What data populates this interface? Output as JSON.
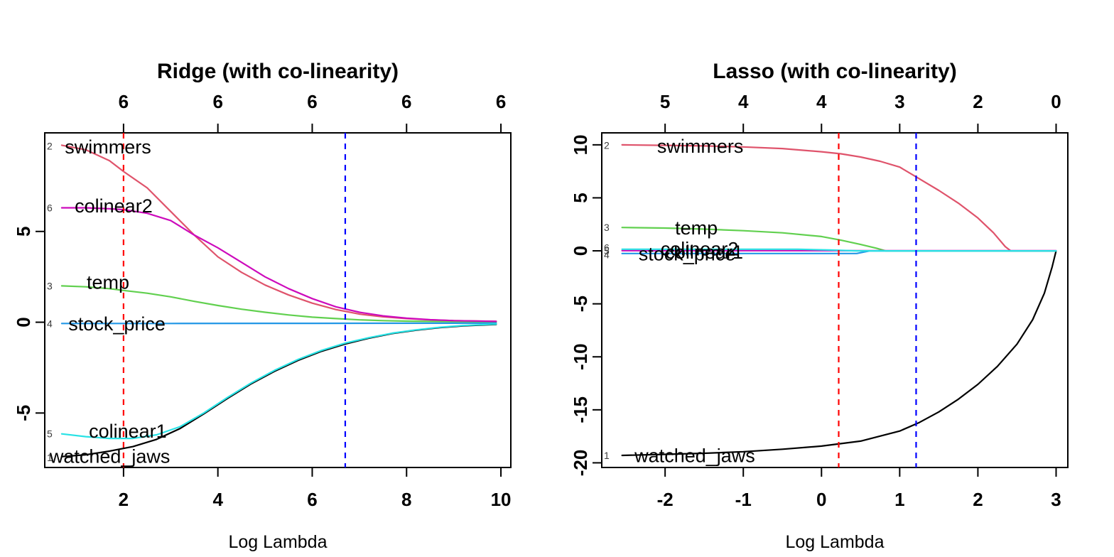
{
  "chart_data": [
    {
      "type": "line",
      "title": "Ridge (with co-linearity)",
      "xlabel": "Log Lambda",
      "ylabel": "",
      "grid": false,
      "legend": "none",
      "xlim": [
        0.33,
        10.21
      ],
      "ylim": [
        -8.0,
        10.43
      ],
      "x_ticks": [
        2,
        4,
        6,
        8,
        10
      ],
      "y_ticks": [
        5,
        0,
        -5
      ],
      "top_ticks": [
        {
          "x": 2,
          "label": "6"
        },
        {
          "x": 4,
          "label": "6"
        },
        {
          "x": 6,
          "label": "6"
        },
        {
          "x": 8,
          "label": "6"
        },
        {
          "x": 10,
          "label": "6"
        }
      ],
      "vlines": [
        {
          "name": "lambda-min-red-dashed",
          "x": 2.0,
          "color": "#FF0000"
        },
        {
          "name": "lambda-1se-blue-dashed",
          "x": 6.7,
          "color": "#0000FF"
        }
      ],
      "series": [
        {
          "name": "watched_jaws",
          "index": "1",
          "color": "#000000",
          "points": [
            [
              0.69,
              -7.4
            ],
            [
              1.2,
              -7.3
            ],
            [
              1.7,
              -7.1
            ],
            [
              2.2,
              -6.85
            ],
            [
              2.7,
              -6.45
            ],
            [
              3.2,
              -5.85
            ],
            [
              3.7,
              -5.05
            ],
            [
              4.2,
              -4.2
            ],
            [
              4.7,
              -3.4
            ],
            [
              5.2,
              -2.7
            ],
            [
              5.7,
              -2.1
            ],
            [
              6.2,
              -1.6
            ],
            [
              6.7,
              -1.2
            ],
            [
              7.2,
              -0.88
            ],
            [
              7.7,
              -0.62
            ],
            [
              8.2,
              -0.44
            ],
            [
              8.7,
              -0.3
            ],
            [
              9.2,
              -0.2
            ],
            [
              9.9,
              -0.12
            ]
          ]
        },
        {
          "name": "swimmers",
          "index": "2",
          "color": "#DF536B",
          "points": [
            [
              0.69,
              9.75
            ],
            [
              1.2,
              9.5
            ],
            [
              1.7,
              8.9
            ],
            [
              2.0,
              8.3
            ],
            [
              2.5,
              7.4
            ],
            [
              3.0,
              6.1
            ],
            [
              3.5,
              4.8
            ],
            [
              4.0,
              3.6
            ],
            [
              4.5,
              2.75
            ],
            [
              5.0,
              2.05
            ],
            [
              5.5,
              1.5
            ],
            [
              6.0,
              1.05
            ],
            [
              6.5,
              0.7
            ],
            [
              7.0,
              0.45
            ],
            [
              7.5,
              0.3
            ],
            [
              8.0,
              0.2
            ],
            [
              8.5,
              0.13
            ],
            [
              9.0,
              0.09
            ],
            [
              9.9,
              0.05
            ]
          ]
        },
        {
          "name": "temp",
          "index": "3",
          "color": "#61D04F",
          "points": [
            [
              0.69,
              2.0
            ],
            [
              1.2,
              1.95
            ],
            [
              1.7,
              1.85
            ],
            [
              2.0,
              1.75
            ],
            [
              2.5,
              1.6
            ],
            [
              3.0,
              1.4
            ],
            [
              3.5,
              1.15
            ],
            [
              4.0,
              0.92
            ],
            [
              4.5,
              0.72
            ],
            [
              5.0,
              0.55
            ],
            [
              5.5,
              0.4
            ],
            [
              6.0,
              0.28
            ],
            [
              6.5,
              0.2
            ],
            [
              7.0,
              0.13
            ],
            [
              7.5,
              0.09
            ],
            [
              8.0,
              0.06
            ],
            [
              9.0,
              0.03
            ],
            [
              9.9,
              0.02
            ]
          ]
        },
        {
          "name": "stock_price",
          "index": "4",
          "color": "#2297E6",
          "points": [
            [
              0.69,
              -0.07
            ],
            [
              3.0,
              -0.07
            ],
            [
              6.0,
              -0.06
            ],
            [
              9.9,
              -0.05
            ]
          ]
        },
        {
          "name": "colinear1",
          "index": "5",
          "color": "#28E2E5",
          "points": [
            [
              0.69,
              -6.15
            ],
            [
              1.2,
              -6.3
            ],
            [
              1.7,
              -6.4
            ],
            [
              2.2,
              -6.4
            ],
            [
              2.7,
              -6.2
            ],
            [
              3.2,
              -5.75
            ],
            [
              3.7,
              -5.0
            ],
            [
              4.2,
              -4.15
            ],
            [
              4.7,
              -3.35
            ],
            [
              5.2,
              -2.65
            ],
            [
              5.7,
              -2.05
            ],
            [
              6.2,
              -1.55
            ],
            [
              6.7,
              -1.15
            ],
            [
              7.2,
              -0.85
            ],
            [
              7.7,
              -0.6
            ],
            [
              8.2,
              -0.42
            ],
            [
              8.7,
              -0.28
            ],
            [
              9.2,
              -0.18
            ],
            [
              9.9,
              -0.1
            ]
          ]
        },
        {
          "name": "colinear2",
          "index": "6",
          "color": "#CD0BBC",
          "points": [
            [
              0.69,
              6.3
            ],
            [
              1.2,
              6.3
            ],
            [
              1.7,
              6.25
            ],
            [
              2.0,
              6.2
            ],
            [
              2.5,
              6.0
            ],
            [
              3.0,
              5.6
            ],
            [
              3.5,
              4.8
            ],
            [
              4.0,
              4.1
            ],
            [
              4.5,
              3.3
            ],
            [
              5.0,
              2.5
            ],
            [
              5.5,
              1.85
            ],
            [
              6.0,
              1.3
            ],
            [
              6.5,
              0.85
            ],
            [
              7.0,
              0.55
            ],
            [
              7.5,
              0.35
            ],
            [
              8.0,
              0.22
            ],
            [
              8.5,
              0.14
            ],
            [
              9.0,
              0.09
            ],
            [
              9.9,
              0.05
            ]
          ]
        }
      ],
      "labels": [
        {
          "text": "swimmers",
          "x": 1.67,
          "y": 9.65
        },
        {
          "text": "colinear2",
          "x": 1.79,
          "y": 6.4
        },
        {
          "text": "temp",
          "x": 1.67,
          "y": 2.2
        },
        {
          "text": "stock_price",
          "x": 1.86,
          "y": -0.1
        },
        {
          "text": "colinear1",
          "x": 2.09,
          "y": -6.0
        },
        {
          "text": "watched_jaws",
          "x": 1.71,
          "y": -7.4
        }
      ],
      "index_marks": [
        {
          "n": "2",
          "y": 9.7
        },
        {
          "n": "6",
          "y": 6.3
        },
        {
          "n": "3",
          "y": 2.0
        },
        {
          "n": "4",
          "y": -0.07
        },
        {
          "n": "5",
          "y": -6.15
        },
        {
          "n": "1",
          "y": -7.45
        }
      ]
    },
    {
      "type": "line",
      "title": "Lasso (with co-linearity)",
      "xlabel": "Log Lambda",
      "ylabel": "",
      "grid": false,
      "legend": "none",
      "xlim": [
        -2.81,
        3.15
      ],
      "ylim": [
        -20.44,
        11.13
      ],
      "x_ticks": [
        -2,
        -1,
        0,
        1,
        2,
        3
      ],
      "y_ticks": [
        10,
        5,
        0,
        -5,
        -10,
        -15,
        -20
      ],
      "top_ticks": [
        {
          "x": -2,
          "label": "5"
        },
        {
          "x": -1,
          "label": "4"
        },
        {
          "x": 0,
          "label": "4"
        },
        {
          "x": 1,
          "label": "3"
        },
        {
          "x": 2,
          "label": "2"
        },
        {
          "x": 3,
          "label": "0"
        }
      ],
      "vlines": [
        {
          "name": "lambda-min-red-dashed",
          "x": 0.22,
          "color": "#FF0000"
        },
        {
          "name": "lambda-1se-blue-dashed",
          "x": 1.21,
          "color": "#0000FF"
        }
      ],
      "series": [
        {
          "name": "watched_jaws",
          "index": "1",
          "color": "#000000",
          "points": [
            [
              -2.55,
              -19.3
            ],
            [
              -2.0,
              -19.2
            ],
            [
              -1.5,
              -19.1
            ],
            [
              -1.0,
              -18.95
            ],
            [
              -0.5,
              -18.72
            ],
            [
              0.0,
              -18.42
            ],
            [
              0.5,
              -17.95
            ],
            [
              1.0,
              -17.0
            ],
            [
              1.25,
              -16.2
            ],
            [
              1.5,
              -15.2
            ],
            [
              1.75,
              -14.0
            ],
            [
              2.0,
              -12.6
            ],
            [
              2.25,
              -10.9
            ],
            [
              2.5,
              -8.8
            ],
            [
              2.7,
              -6.5
            ],
            [
              2.85,
              -4.0
            ],
            [
              2.95,
              -1.5
            ],
            [
              3.0,
              0.0
            ]
          ]
        },
        {
          "name": "swimmers",
          "index": "2",
          "color": "#DF536B",
          "points": [
            [
              -2.55,
              10.0
            ],
            [
              -2.0,
              9.95
            ],
            [
              -1.5,
              9.9
            ],
            [
              -1.0,
              9.8
            ],
            [
              -0.5,
              9.65
            ],
            [
              0.0,
              9.35
            ],
            [
              0.25,
              9.15
            ],
            [
              0.5,
              8.85
            ],
            [
              0.75,
              8.45
            ],
            [
              1.0,
              7.9
            ],
            [
              1.25,
              6.8
            ],
            [
              1.5,
              5.7
            ],
            [
              1.75,
              4.5
            ],
            [
              2.0,
              3.1
            ],
            [
              2.2,
              1.7
            ],
            [
              2.35,
              0.4
            ],
            [
              2.42,
              0.0
            ],
            [
              3.0,
              0.0
            ]
          ]
        },
        {
          "name": "temp",
          "index": "3",
          "color": "#61D04F",
          "points": [
            [
              -2.55,
              2.2
            ],
            [
              -2.0,
              2.15
            ],
            [
              -1.5,
              2.05
            ],
            [
              -1.0,
              1.9
            ],
            [
              -0.5,
              1.7
            ],
            [
              0.0,
              1.35
            ],
            [
              0.25,
              1.0
            ],
            [
              0.5,
              0.6
            ],
            [
              0.7,
              0.25
            ],
            [
              0.82,
              0.0
            ],
            [
              3.0,
              0.0
            ]
          ]
        },
        {
          "name": "colinear2",
          "index": "6",
          "color": "#CD0BBC",
          "points": [
            [
              -2.55,
              0.02
            ],
            [
              3.0,
              0.02
            ]
          ]
        },
        {
          "name": "stock_price",
          "index": "4",
          "color": "#2297E6",
          "points": [
            [
              -2.55,
              -0.25
            ],
            [
              0.45,
              -0.25
            ],
            [
              0.62,
              0.0
            ],
            [
              3.0,
              0.0
            ]
          ]
        },
        {
          "name": "colinear1",
          "index": "5",
          "color": "#28E2E5",
          "points": [
            [
              -2.55,
              0.15
            ],
            [
              -0.3,
              0.15
            ],
            [
              0.1,
              0.08
            ],
            [
              0.45,
              0.0
            ],
            [
              3.0,
              0.0
            ]
          ]
        }
      ],
      "labels": [
        {
          "text": "swimmers",
          "x": -1.55,
          "y": 9.85
        },
        {
          "text": "temp",
          "x": -1.6,
          "y": 2.15
        },
        {
          "text": "colinear2",
          "x": -1.56,
          "y": 0.18
        },
        {
          "text": "colinear1",
          "x": -1.5,
          "y": -0.12
        },
        {
          "text": "stock_price",
          "x": -1.72,
          "y": -0.3
        },
        {
          "text": "watched_jaws",
          "x": -1.62,
          "y": -19.35
        }
      ],
      "index_marks": [
        {
          "n": "2",
          "y": 9.95
        },
        {
          "n": "3",
          "y": 2.2
        },
        {
          "n": "6",
          "y": 0.3
        },
        {
          "n": "5",
          "y": 0.0
        },
        {
          "n": "4",
          "y": -0.35
        },
        {
          "n": "1",
          "y": -19.3
        }
      ]
    }
  ]
}
